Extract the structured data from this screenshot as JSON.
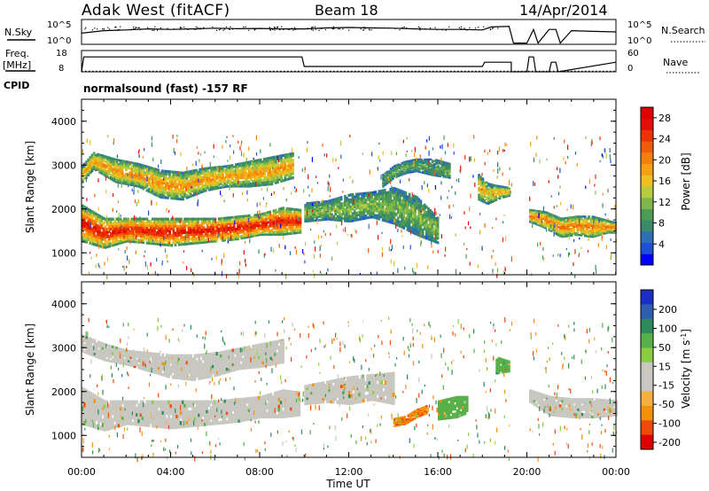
{
  "header": {
    "station": "Adak West (fitACF)",
    "beam": "Beam 18",
    "date": "14/Apr/2014"
  },
  "left_labels": {
    "nsky": "N.Sky",
    "freq": "Freq.",
    "mhz": "[MHz]",
    "cpid": "CPID"
  },
  "right_labels": {
    "nsearch": "N.Search",
    "nave": "Nave"
  },
  "cpid_text": "normalsound (fast) -157 RF",
  "noise_ticks_left": [
    "10^5",
    "10^0"
  ],
  "noise_ticks_right": [
    "10^5",
    "10^0"
  ],
  "freq_ticks": [
    "18",
    "8"
  ],
  "nave_ticks": [
    "60",
    "0"
  ],
  "chart_data": [
    {
      "type": "line",
      "panel": "noise",
      "series": [
        {
          "name": "N.Sky",
          "x": [
            0,
            0.5,
            1,
            2,
            3,
            4,
            5,
            6,
            7,
            8,
            9,
            10,
            11,
            12,
            13,
            14,
            15,
            16,
            17,
            18,
            18.4,
            19.2,
            19.4,
            20.0,
            20.3,
            20.5,
            21,
            21.3,
            21.5,
            22,
            23,
            24
          ],
          "values": [
            0.45,
            0.5,
            0.55,
            0.58,
            0.62,
            0.6,
            0.62,
            0.65,
            0.63,
            0.64,
            0.62,
            0.62,
            0.66,
            0.68,
            0.66,
            0.65,
            0.62,
            0.6,
            0.6,
            0.58,
            0.7,
            0.72,
            0.05,
            0.05,
            0.6,
            0.05,
            0.6,
            0.6,
            0.05,
            0.55,
            0.52,
            0.5
          ]
        },
        {
          "name": "N.Search",
          "x": [
            0,
            24
          ],
          "values": [
            null,
            null
          ]
        }
      ]
    },
    {
      "type": "line",
      "panel": "frequency",
      "x_hours": [
        0,
        0.1,
        9.9,
        10.0,
        18.0,
        18.1,
        19.2,
        19.3,
        19.3,
        20.0,
        20.1,
        20.3,
        20.4,
        21.0,
        21.1,
        21.3,
        21.4,
        24
      ],
      "freq_mhz": [
        8,
        15,
        15,
        10.5,
        10.5,
        12.5,
        12.5,
        12.5,
        8,
        8,
        15,
        15,
        8,
        8,
        12.5,
        12.5,
        8,
        12.5
      ],
      "nave_dotted_level": 2,
      "ylim_freq": [
        8,
        18
      ],
      "ylim_nave": [
        0,
        60
      ]
    },
    {
      "type": "heatmap",
      "panel": "power",
      "title": "",
      "xlabel": "",
      "ylabel": "Slant Range [km]",
      "yticks": [
        "1000",
        "2000",
        "3000",
        "4000"
      ],
      "ylim": [
        500,
        4500
      ],
      "xlim": [
        0,
        24
      ],
      "colorbar_label": "Power [dB]",
      "colorbar_ticks": [
        "4",
        "8",
        "12",
        "16",
        "20",
        "24",
        "28"
      ],
      "colorbar_range": [
        0,
        30
      ],
      "gap_hours": [
        [
          19.3,
          20.1
        ]
      ],
      "bands": [
        {
          "t": [
            0,
            1,
            2,
            3,
            4,
            5,
            6,
            7,
            8,
            9,
            9.8
          ],
          "lower": [
            1250,
            1100,
            1250,
            1200,
            1150,
            1200,
            1250,
            1300,
            1400,
            1400,
            1450
          ],
          "upper": [
            2100,
            1800,
            1800,
            1800,
            1800,
            1800,
            1800,
            1850,
            1900,
            2050,
            2000
          ],
          "core_power": 28
        },
        {
          "t": [
            0,
            0.5,
            1.5,
            2.5,
            3.5,
            4.5,
            5.5,
            6.5,
            7.5,
            8.5,
            9.5
          ],
          "lower": [
            2600,
            2900,
            2600,
            2500,
            2250,
            2200,
            2400,
            2500,
            2500,
            2550,
            2700
          ],
          "upper": [
            3000,
            3300,
            3150,
            3050,
            2900,
            2850,
            2950,
            3000,
            3100,
            3200,
            3300
          ],
          "core_power": 20
        },
        {
          "t": [
            10,
            11,
            12,
            13,
            14,
            15,
            16
          ],
          "lower": [
            1700,
            1750,
            1700,
            1800,
            1650,
            1400,
            1200
          ],
          "upper": [
            2150,
            2200,
            2350,
            2400,
            2500,
            2300,
            1800
          ],
          "core_power": 12
        },
        {
          "t": [
            13.5,
            14,
            14.5,
            15,
            15.8,
            16.5
          ],
          "lower": [
            2500,
            2700,
            2800,
            2850,
            2750,
            2700
          ],
          "upper": [
            2800,
            3000,
            3100,
            3150,
            3150,
            3050
          ],
          "core_power": 10
        },
        {
          "t": [
            17.8,
            18.2,
            18.6,
            19.2
          ],
          "lower": [
            2200,
            2100,
            2200,
            2300
          ],
          "upper": [
            2800,
            2600,
            2550,
            2500
          ],
          "core_power": 18
        },
        {
          "t": [
            20.1,
            20.8,
            21.5,
            22.2,
            22.9,
            23.6,
            24
          ],
          "lower": [
            1700,
            1550,
            1350,
            1400,
            1350,
            1450,
            1450
          ],
          "upper": [
            2000,
            1950,
            1800,
            1850,
            1850,
            1750,
            1700
          ],
          "core_power": 22
        }
      ]
    },
    {
      "type": "heatmap",
      "panel": "velocity",
      "ylabel": "Slant Range [km]",
      "yticks": [
        "1000",
        "2000",
        "3000",
        "4000"
      ],
      "ylim": [
        500,
        4500
      ],
      "xlim": [
        0,
        24
      ],
      "xticks": [
        "00:00",
        "04:00",
        "08:00",
        "12:00",
        "16:00",
        "20:00",
        "00:00"
      ],
      "xlabel": "Time UT",
      "colorbar_label": "Velocity [m s^-1]",
      "colorbar_ticks": [
        "200",
        "100",
        "50",
        "15",
        "-15",
        "-50",
        "-100",
        "-200"
      ],
      "gap_hours": [
        [
          19.3,
          20.1
        ]
      ],
      "regions": [
        {
          "t": [
            0,
            1,
            2,
            3,
            4,
            5,
            6,
            7,
            8,
            9,
            9.8
          ],
          "lower": [
            1250,
            1100,
            1250,
            1200,
            1150,
            1200,
            1250,
            1300,
            1400,
            1400,
            1450
          ],
          "upper": [
            2100,
            1800,
            1800,
            1800,
            1800,
            1800,
            1800,
            1850,
            1900,
            2050,
            2000
          ],
          "velocity": 0
        },
        {
          "t": [
            0,
            1,
            2,
            3,
            4,
            5,
            6,
            7,
            8,
            9
          ],
          "lower": [
            2900,
            2700,
            2600,
            2450,
            2300,
            2250,
            2350,
            2500,
            2550,
            2650
          ],
          "upper": [
            3300,
            3100,
            2950,
            2900,
            2850,
            2850,
            2900,
            3000,
            3100,
            3200
          ],
          "velocity": 0
        },
        {
          "t": [
            10,
            11,
            12,
            13,
            14
          ],
          "lower": [
            1700,
            1750,
            1700,
            1800,
            1700
          ],
          "upper": [
            2150,
            2250,
            2350,
            2400,
            2450
          ],
          "velocity": 0
        },
        {
          "t": [
            14,
            14.5,
            15,
            15.5
          ],
          "lower": [
            1200,
            1250,
            1400,
            1500
          ],
          "upper": [
            1400,
            1450,
            1600,
            1700
          ],
          "velocity": -70
        },
        {
          "t": [
            16,
            16.8,
            17.3
          ],
          "lower": [
            1350,
            1400,
            1500
          ],
          "upper": [
            1800,
            1900,
            1900
          ],
          "velocity": 60
        },
        {
          "t": [
            18.6,
            19.2
          ],
          "lower": [
            2400,
            2450
          ],
          "upper": [
            2800,
            2700
          ],
          "velocity": 60
        },
        {
          "t": [
            20.1,
            21,
            22,
            23,
            24
          ],
          "lower": [
            1750,
            1450,
            1400,
            1400,
            1450
          ],
          "upper": [
            2050,
            1900,
            1850,
            1850,
            1800
          ],
          "velocity": 0
        }
      ]
    }
  ],
  "colors": {
    "power_scale": [
      "#0000ff",
      "#1e4fd8",
      "#2c6fb8",
      "#3a8a6a",
      "#4d9b55",
      "#7fb84a",
      "#b8cc3e",
      "#f0c020",
      "#f59f12",
      "#f57f0a",
      "#f25c08",
      "#ec3306",
      "#e30e04",
      "#e00000"
    ],
    "velocity_scale": [
      "#e00000",
      "#f03a06",
      "#f5800a",
      "#f5a83a",
      "#c8c8c0",
      "#c8c8c0",
      "#4aad4a",
      "#2f8a5a",
      "#2c5fb0",
      "#1a2fc8"
    ]
  }
}
